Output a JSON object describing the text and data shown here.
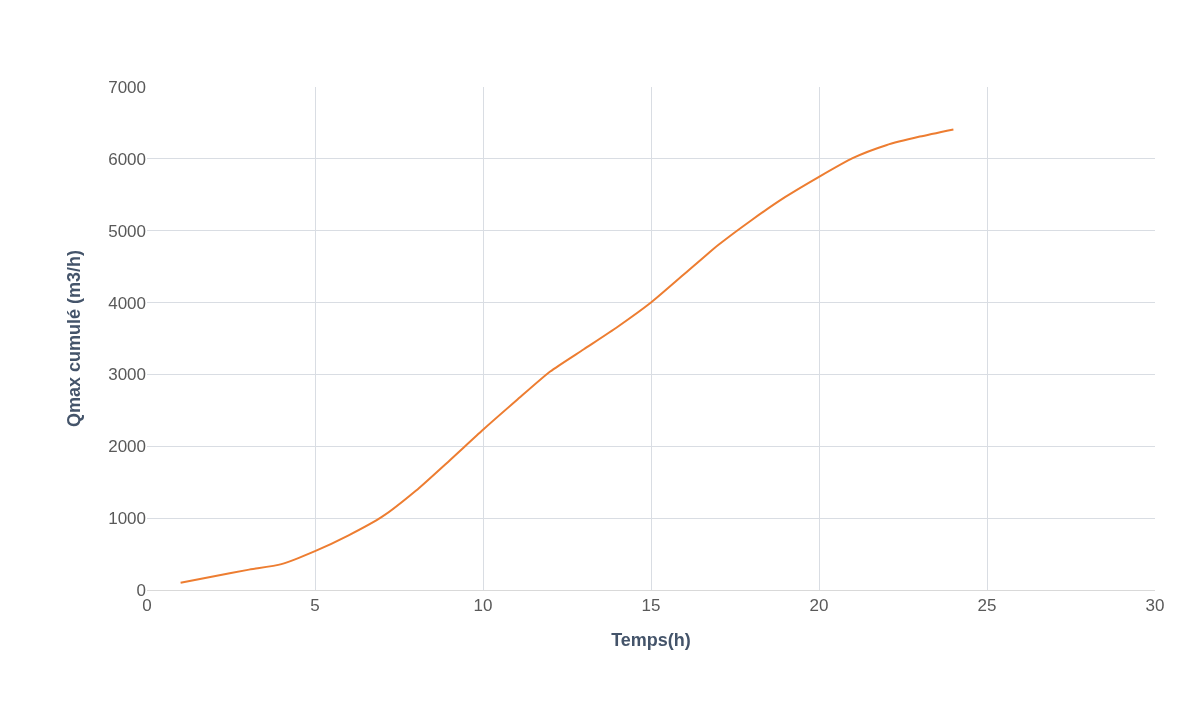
{
  "chart_data": {
    "type": "line",
    "xlabel": "Temps(h)",
    "ylabel": "Qmax cumulé (m3/h)",
    "x": [
      1,
      2,
      3,
      4,
      5,
      6,
      7,
      8,
      9,
      10,
      11,
      12,
      13,
      14,
      15,
      16,
      17,
      18,
      19,
      20,
      21,
      22,
      23,
      24
    ],
    "series": [
      {
        "color": "#ed7d31",
        "values": [
          100,
          190,
          280,
          360,
          540,
          760,
          1020,
          1380,
          1800,
          2230,
          2640,
          3040,
          3350,
          3660,
          4000,
          4400,
          4800,
          5150,
          5470,
          5750,
          6010,
          6190,
          6310,
          6410
        ]
      }
    ],
    "xlim": [
      0,
      30
    ],
    "xticks": [
      0,
      5,
      10,
      15,
      20,
      25,
      30
    ],
    "ylim": [
      0,
      7000
    ],
    "yticks": [
      0,
      1000,
      2000,
      3000,
      4000,
      5000,
      6000,
      7000
    ],
    "grid": true,
    "marker": "none",
    "line_style": "solid"
  }
}
